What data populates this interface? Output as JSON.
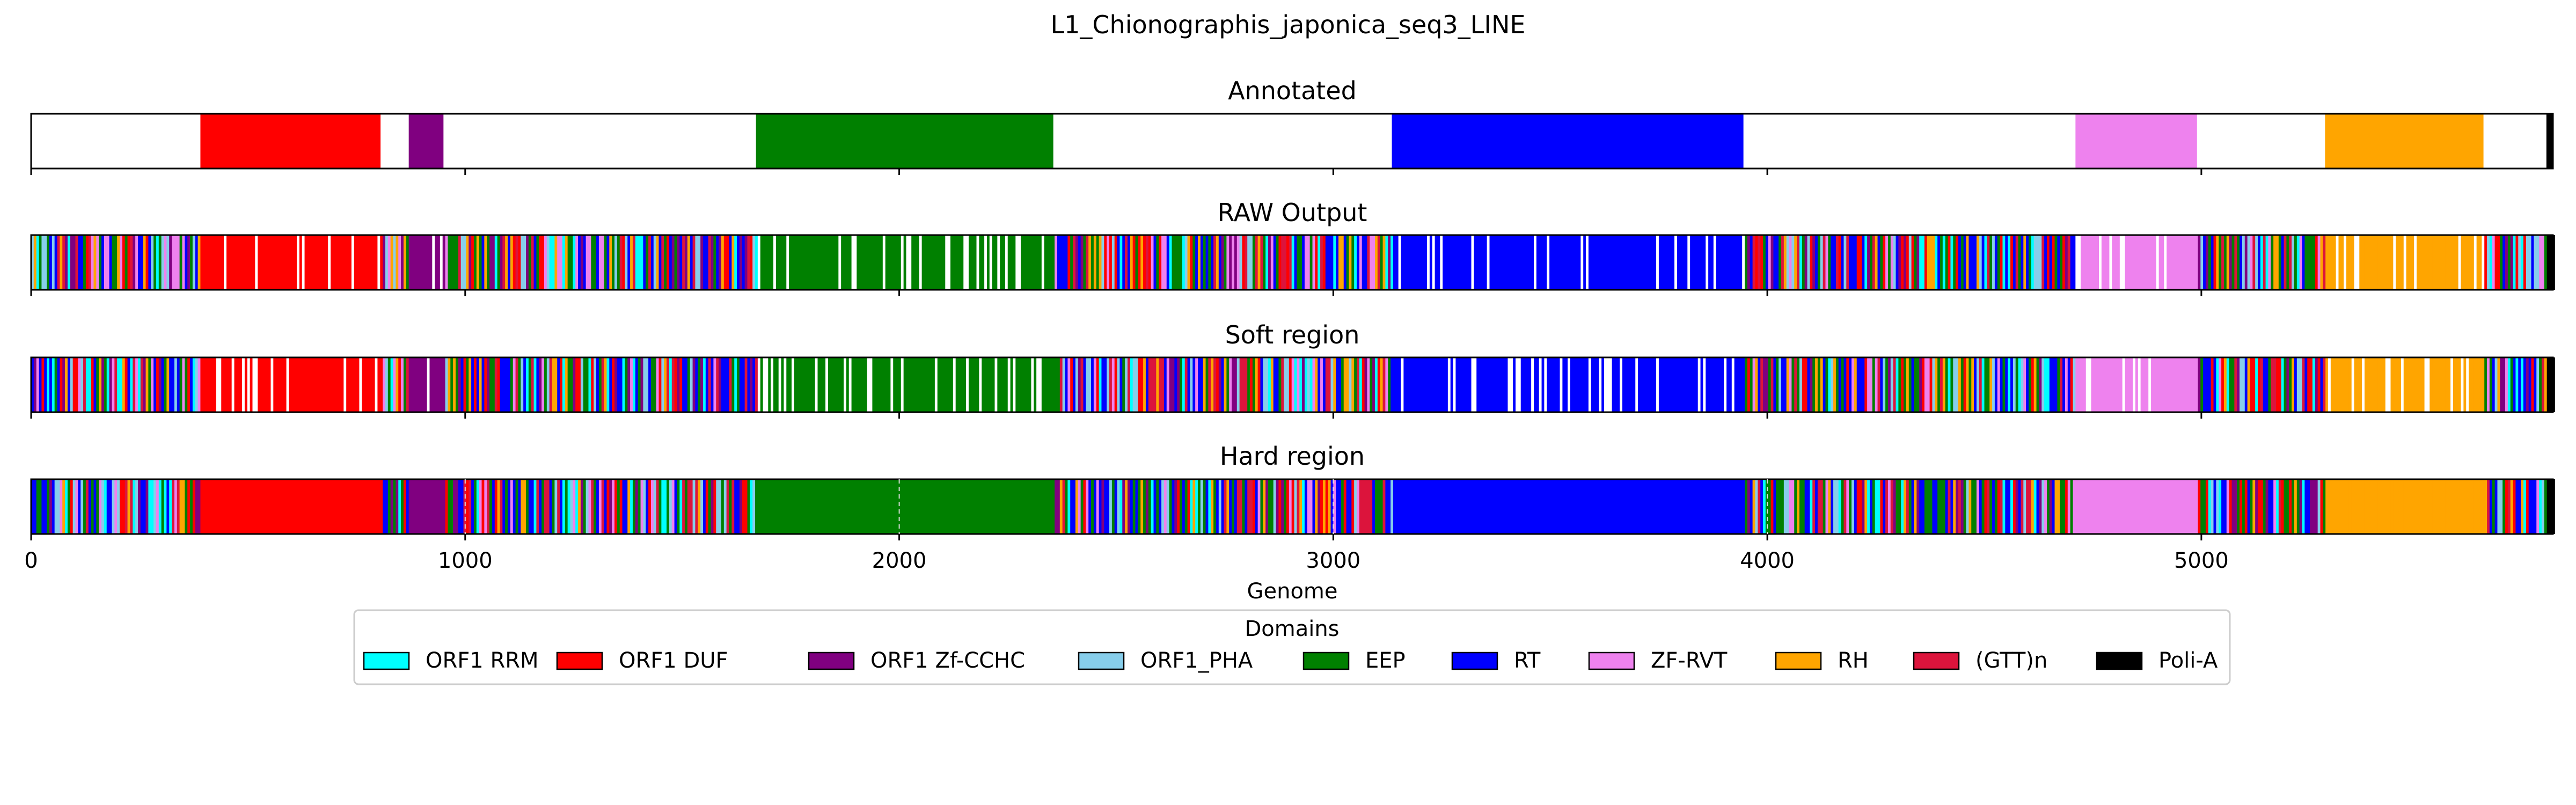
{
  "figure": {
    "title": "L1_Chionographis_japonica_seq3_LINE"
  },
  "chart_data": {
    "type": "bar",
    "xlabel": "Genome",
    "xlim": [
      0,
      5810
    ],
    "xticks": [
      0,
      1000,
      2000,
      3000,
      4000,
      5000
    ],
    "tick_labels": [
      "0",
      "1000",
      "2000",
      "3000",
      "4000",
      "5000"
    ],
    "tracks": [
      {
        "title": "Annotated",
        "mode": "annotated"
      },
      {
        "title": "RAW Output",
        "mode": "raw"
      },
      {
        "title": "Soft region",
        "mode": "soft"
      },
      {
        "title": "Hard region",
        "mode": "hard"
      }
    ],
    "annotated_segments": [
      {
        "domain": "ORF1 DUF",
        "start": 390,
        "end": 805
      },
      {
        "domain": "ORF1 Zf-CCHC",
        "start": 870,
        "end": 950
      },
      {
        "domain": "EEP",
        "start": 1670,
        "end": 2355
      },
      {
        "domain": "RT",
        "start": 3135,
        "end": 3945
      },
      {
        "domain": "ZF-RVT",
        "start": 4710,
        "end": 4990
      },
      {
        "domain": "RH",
        "start": 5285,
        "end": 5650
      },
      {
        "domain": "Poli-A",
        "start": 5795,
        "end": 5810
      }
    ],
    "legend": {
      "title": "Domains",
      "placement": "below",
      "entries": [
        {
          "label": "ORF1 RRM",
          "color": "#00ffff"
        },
        {
          "label": "ORF1 DUF",
          "color": "#ff0000"
        },
        {
          "label": "ORF1 Zf-CCHC",
          "color": "#800080"
        },
        {
          "label": "ORF1_PHA",
          "color": "#87ceeb"
        },
        {
          "label": "EEP",
          "color": "#008000"
        },
        {
          "label": "RT",
          "color": "#0000ff"
        },
        {
          "label": "ZF-RVT",
          "color": "#ee82ee"
        },
        {
          "label": "RH",
          "color": "#ffa500"
        },
        {
          "label": "(GTT)n",
          "color": "#dc143c"
        },
        {
          "label": "Poli-A",
          "color": "#000000"
        }
      ]
    }
  }
}
